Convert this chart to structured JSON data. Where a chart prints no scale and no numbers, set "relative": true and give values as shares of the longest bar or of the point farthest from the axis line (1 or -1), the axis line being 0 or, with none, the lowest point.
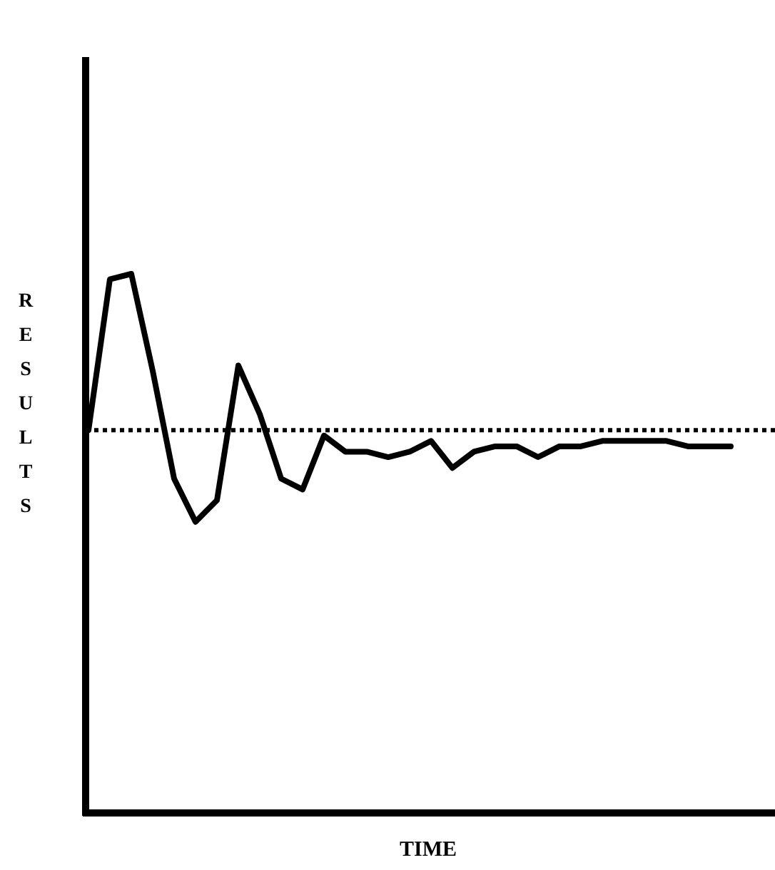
{
  "chart_data": {
    "type": "line",
    "relative": true,
    "xlabel": "TIME",
    "ylabel": "RESULTS",
    "marker": "none",
    "line_style": "solid",
    "categories": [
      null,
      null,
      null,
      null,
      null,
      null,
      null,
      null,
      null,
      null,
      null,
      null,
      null,
      null,
      null,
      null,
      null,
      null,
      null,
      null,
      null,
      null,
      null,
      null,
      null,
      null,
      null,
      null,
      null,
      null,
      null
    ],
    "series": [
      {
        "color": "#000000",
        "values": [
          0.71,
          0.99,
          1,
          0.82,
          0.62,
          0.54,
          0.58,
          0.83,
          0.74,
          0.62,
          0.6,
          0.7,
          0.67,
          0.67,
          0.66,
          0.67,
          0.69,
          0.64,
          0.67,
          0.68,
          0.68,
          0.66,
          0.68,
          0.68,
          0.69,
          0.69,
          0.69,
          0.69,
          0.68,
          0.68,
          0.68
        ]
      }
    ],
    "ref_lines": [
      {
        "axis": "y",
        "value": 0.71,
        "line_style": "dotted",
        "color": "#000000"
      }
    ]
  }
}
